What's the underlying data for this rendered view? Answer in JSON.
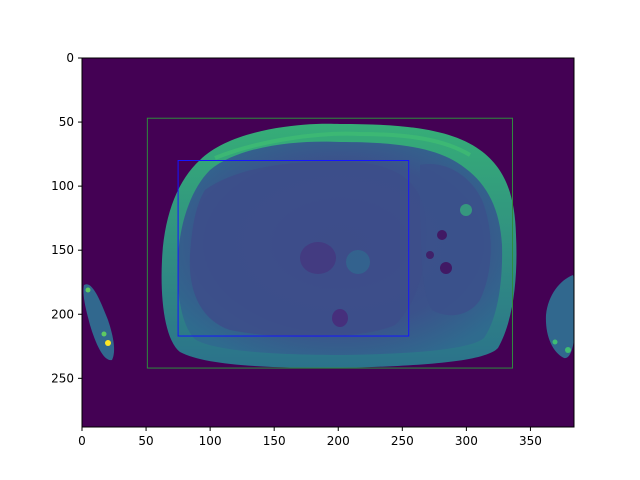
{
  "image": {
    "kind": "grayscale MRI slice shown with viridis colormap",
    "width": 384,
    "height": 288,
    "background_color": "#440154",
    "colormap": "viridis"
  },
  "axes": {
    "xlim": [
      0,
      384
    ],
    "ylim": [
      288,
      0
    ],
    "y_inverted": true,
    "xticks": [
      0,
      50,
      100,
      150,
      200,
      250,
      300,
      350
    ],
    "yticks": [
      0,
      50,
      100,
      150,
      200,
      250
    ],
    "xtick_labels": [
      "0",
      "50",
      "100",
      "150",
      "200",
      "250",
      "300",
      "350"
    ],
    "ytick_labels": [
      "0",
      "50",
      "100",
      "150",
      "200",
      "250"
    ]
  },
  "boxes": [
    {
      "name": "outer-box",
      "color": "#2e8b3d",
      "x0": 51,
      "y0": 47,
      "x1": 336,
      "y1": 242
    },
    {
      "name": "inner-box",
      "color": "#1515ff",
      "x0": 75,
      "y0": 80,
      "x1": 255,
      "y1": 217
    }
  ]
}
